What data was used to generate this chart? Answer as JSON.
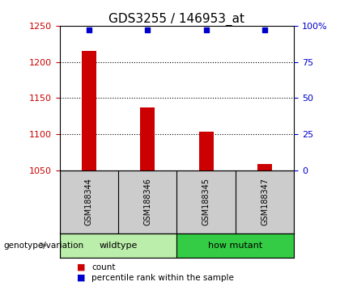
{
  "title": "GDS3255 / 146953_at",
  "samples": [
    "GSM188344",
    "GSM188346",
    "GSM188345",
    "GSM188347"
  ],
  "counts": [
    1215,
    1137,
    1103,
    1058
  ],
  "percentiles": [
    97,
    97,
    97,
    97
  ],
  "ylim_left": [
    1050,
    1250
  ],
  "ylim_right": [
    0,
    100
  ],
  "yticks_left": [
    1050,
    1100,
    1150,
    1200,
    1250
  ],
  "yticks_right": [
    0,
    25,
    50,
    75,
    100
  ],
  "ytick_labels_right": [
    "0",
    "25",
    "50",
    "75",
    "100%"
  ],
  "bar_color": "#cc0000",
  "dot_color": "#0000cc",
  "groups": [
    {
      "label": "wildtype",
      "indices": [
        0,
        1
      ],
      "color": "#bbeeaa"
    },
    {
      "label": "how mutant",
      "indices": [
        2,
        3
      ],
      "color": "#33cc44"
    }
  ],
  "group_label": "genotype/variation",
  "legend_count_label": "count",
  "legend_percentile_label": "percentile rank within the sample",
  "bg_plot": "#ffffff",
  "bg_sample": "#cccccc",
  "bar_width": 0.25,
  "title_fontsize": 11,
  "tick_fontsize": 8,
  "label_fontsize": 8,
  "sample_fontsize": 7,
  "legend_fontsize": 7.5
}
